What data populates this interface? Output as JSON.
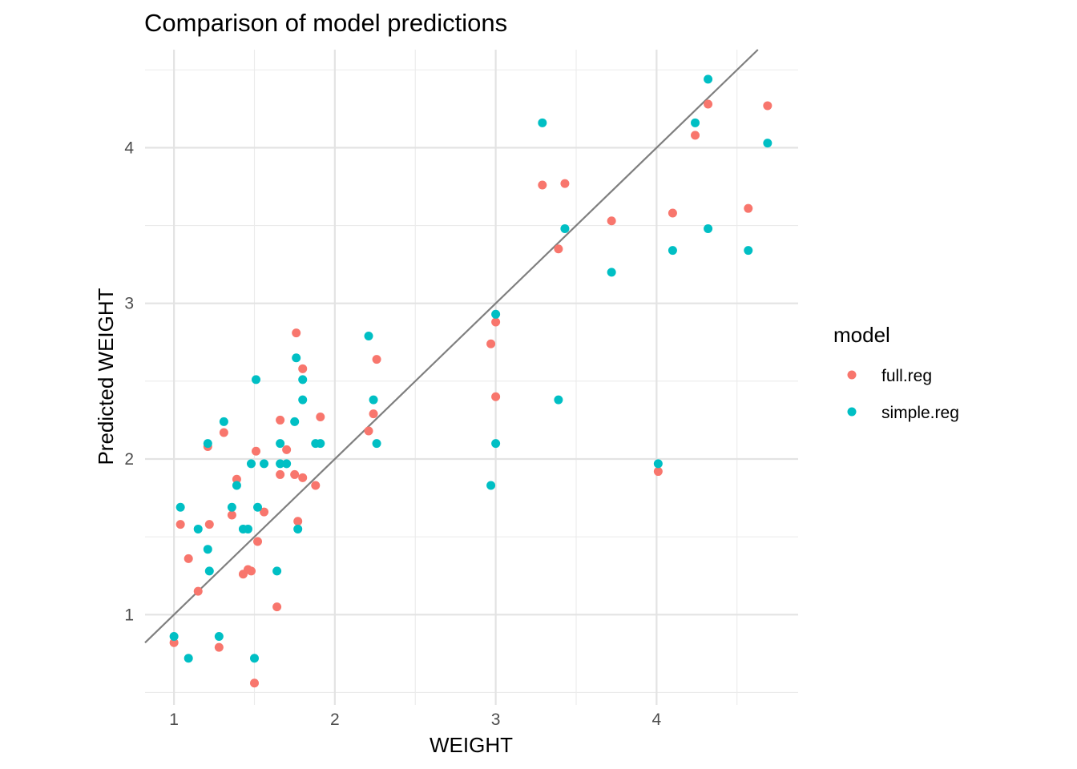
{
  "chart_data": {
    "type": "scatter",
    "title": "Comparison of model predictions",
    "xlabel": "WEIGHT",
    "ylabel": "Predicted WEIGHT",
    "xlim": [
      0.82,
      4.88
    ],
    "ylim": [
      0.42,
      4.63
    ],
    "x_ticks": [
      "1",
      "2",
      "3",
      "4"
    ],
    "y_ticks": [
      "1",
      "2",
      "3",
      "4"
    ],
    "grid": true,
    "legend": {
      "title": "model",
      "position": "right"
    },
    "reference_line": {
      "type": "identity",
      "intercept": 0,
      "slope": 1,
      "color": "#7f7f7f"
    },
    "series": [
      {
        "name": "full.reg",
        "color": "#F8766D",
        "points": [
          [
            1.0,
            0.82
          ],
          [
            1.04,
            1.58
          ],
          [
            1.09,
            1.36
          ],
          [
            1.15,
            1.15
          ],
          [
            1.21,
            2.08
          ],
          [
            1.22,
            1.58
          ],
          [
            1.28,
            0.79
          ],
          [
            1.31,
            2.17
          ],
          [
            1.36,
            1.64
          ],
          [
            1.39,
            1.87
          ],
          [
            1.43,
            1.26
          ],
          [
            1.46,
            1.29
          ],
          [
            1.48,
            1.28
          ],
          [
            1.5,
            0.56
          ],
          [
            1.51,
            2.05
          ],
          [
            1.52,
            1.47
          ],
          [
            1.56,
            1.66
          ],
          [
            1.64,
            1.05
          ],
          [
            1.66,
            2.25
          ],
          [
            1.66,
            1.9
          ],
          [
            1.7,
            2.06
          ],
          [
            1.75,
            1.9
          ],
          [
            1.76,
            2.81
          ],
          [
            1.77,
            1.6
          ],
          [
            1.8,
            2.58
          ],
          [
            1.8,
            1.88
          ],
          [
            1.88,
            1.83
          ],
          [
            1.91,
            2.27
          ],
          [
            2.21,
            2.18
          ],
          [
            2.24,
            2.29
          ],
          [
            2.26,
            2.64
          ],
          [
            2.97,
            2.74
          ],
          [
            3.0,
            2.88
          ],
          [
            3.0,
            2.4
          ],
          [
            3.29,
            3.76
          ],
          [
            3.39,
            3.35
          ],
          [
            3.43,
            3.77
          ],
          [
            3.72,
            3.53
          ],
          [
            4.01,
            1.92
          ],
          [
            4.1,
            3.58
          ],
          [
            4.24,
            4.08
          ],
          [
            4.32,
            4.28
          ],
          [
            4.57,
            3.61
          ],
          [
            4.69,
            4.27
          ]
        ]
      },
      {
        "name": "simple.reg",
        "color": "#00BFC4",
        "points": [
          [
            1.0,
            0.86
          ],
          [
            1.04,
            1.69
          ],
          [
            1.09,
            0.72
          ],
          [
            1.15,
            1.55
          ],
          [
            1.21,
            2.1
          ],
          [
            1.21,
            1.42
          ],
          [
            1.22,
            1.28
          ],
          [
            1.28,
            0.86
          ],
          [
            1.31,
            2.24
          ],
          [
            1.36,
            1.69
          ],
          [
            1.39,
            1.83
          ],
          [
            1.43,
            1.55
          ],
          [
            1.46,
            1.55
          ],
          [
            1.48,
            1.97
          ],
          [
            1.5,
            0.72
          ],
          [
            1.51,
            2.51
          ],
          [
            1.52,
            1.69
          ],
          [
            1.56,
            1.97
          ],
          [
            1.64,
            1.28
          ],
          [
            1.66,
            2.1
          ],
          [
            1.66,
            1.97
          ],
          [
            1.7,
            1.97
          ],
          [
            1.75,
            2.24
          ],
          [
            1.76,
            2.65
          ],
          [
            1.77,
            1.55
          ],
          [
            1.8,
            2.51
          ],
          [
            1.8,
            2.38
          ],
          [
            1.88,
            2.1
          ],
          [
            1.91,
            2.1
          ],
          [
            2.21,
            2.79
          ],
          [
            2.24,
            2.38
          ],
          [
            2.26,
            2.1
          ],
          [
            2.97,
            1.83
          ],
          [
            3.0,
            2.93
          ],
          [
            3.0,
            2.1
          ],
          [
            3.29,
            4.16
          ],
          [
            3.39,
            2.38
          ],
          [
            3.43,
            3.48
          ],
          [
            3.72,
            3.2
          ],
          [
            4.01,
            1.97
          ],
          [
            4.1,
            3.34
          ],
          [
            4.24,
            4.16
          ],
          [
            4.32,
            4.44
          ],
          [
            4.32,
            3.48
          ],
          [
            4.57,
            3.34
          ],
          [
            4.69,
            4.03
          ]
        ]
      }
    ]
  }
}
